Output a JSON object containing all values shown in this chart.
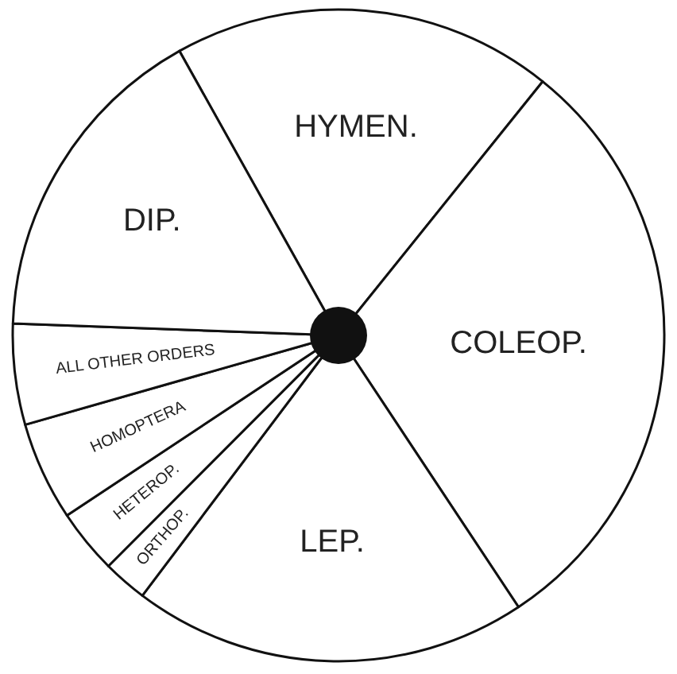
{
  "chart_data": {
    "type": "pie",
    "categories": [
      "HYMEN.",
      "COLEOP.",
      "LEP.",
      "ORTHOP.",
      "HETEROP.",
      "HOMOPTERA",
      "ALL OTHER ORDERS",
      "DIP."
    ],
    "values": [
      18.9,
      29.9,
      19.6,
      2.2,
      3.2,
      4.9,
      5.0,
      16.3
    ],
    "colors": [
      "#ffffff",
      "#ffffff",
      "#ffffff",
      "#ffffff",
      "#ffffff",
      "#ffffff",
      "#ffffff",
      "#ffffff"
    ],
    "legend": false
  }
}
